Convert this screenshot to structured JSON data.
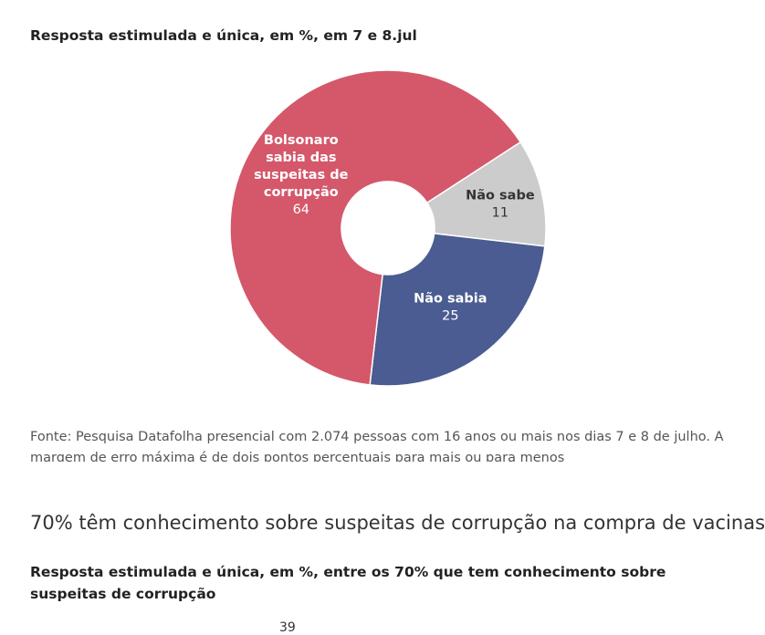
{
  "subtitle": "Resposta estimulada e única, em %, em 7 e 8.jul",
  "chart_data": {
    "type": "pie",
    "donut": true,
    "title": "",
    "slices": [
      {
        "label": "Não sabe",
        "value": 11,
        "color": "#cccccc",
        "label_color": "#333333"
      },
      {
        "label": "Não sabia",
        "value": 25,
        "color": "#4a5c91",
        "label_color": "#ffffff"
      },
      {
        "label": "Bolsonaro sabia das suspeitas de corrupção",
        "value": 64,
        "color": "#d4586a",
        "label_color": "#ffffff"
      }
    ]
  },
  "note": "Fonte: Pesquisa Datafolha presencial com 2.074 pessoas com 16 anos ou mais nos dias 7 e 8 de julho. A margem de erro máxima é de dois pontos percentuais para mais ou para menos",
  "headline2": "70% têm conhecimento sobre suspeitas de corrupção na compra de vacinas",
  "subtitle2": "Resposta estimulada e única, em %, entre os 70% que tem conhecimento sobre suspeitas de corrupção",
  "next_chart_first_value": "39"
}
